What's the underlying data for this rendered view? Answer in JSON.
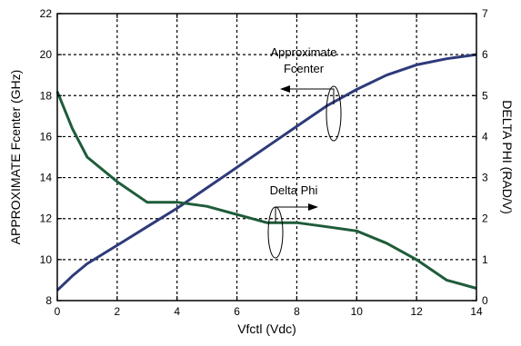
{
  "chart_data": {
    "type": "line",
    "title": "",
    "xlabel": "Vfctl (Vdc)",
    "ylabel_left": "APPROXIMATE Fcenter (GHz)",
    "ylabel_right": "DELTA PHI (RAD/V)",
    "xlim": [
      0,
      14
    ],
    "ylim_left": [
      8,
      22
    ],
    "ylim_right": [
      0,
      7
    ],
    "x_ticks": [
      "0",
      "2",
      "4",
      "6",
      "8",
      "10",
      "12",
      "14"
    ],
    "y_ticks_left": [
      "8",
      "10",
      "12",
      "14",
      "16",
      "18",
      "20",
      "22"
    ],
    "y_ticks_right": [
      "0",
      "1",
      "2",
      "3",
      "4",
      "5",
      "6",
      "7"
    ],
    "grid": true,
    "series": [
      {
        "name": "Approximate Fcenter",
        "axis": "left",
        "color": "#2e3a7a",
        "x": [
          0,
          0.5,
          1,
          2,
          3,
          4,
          5,
          6,
          7,
          8,
          9,
          10,
          11,
          12,
          13,
          14
        ],
        "y": [
          8.5,
          9.2,
          9.8,
          10.7,
          11.6,
          12.5,
          13.5,
          14.5,
          15.5,
          16.5,
          17.5,
          18.3,
          19.0,
          19.5,
          19.8,
          20.0
        ]
      },
      {
        "name": "Delta Phi",
        "axis": "right",
        "color": "#1f5c3a",
        "x": [
          0,
          0.5,
          1,
          2,
          3,
          4,
          5,
          6,
          7,
          8,
          9,
          10,
          11,
          12,
          13,
          14
        ],
        "y": [
          5.1,
          4.2,
          3.5,
          2.9,
          2.4,
          2.4,
          2.3,
          2.1,
          1.9,
          1.9,
          1.8,
          1.7,
          1.4,
          1.0,
          0.5,
          0.3
        ]
      }
    ],
    "annotations": [
      {
        "text": "Approximate",
        "series": 0
      },
      {
        "text": "Fcenter",
        "series": 0
      },
      {
        "text": "Delta Phi",
        "series": 1
      }
    ]
  }
}
